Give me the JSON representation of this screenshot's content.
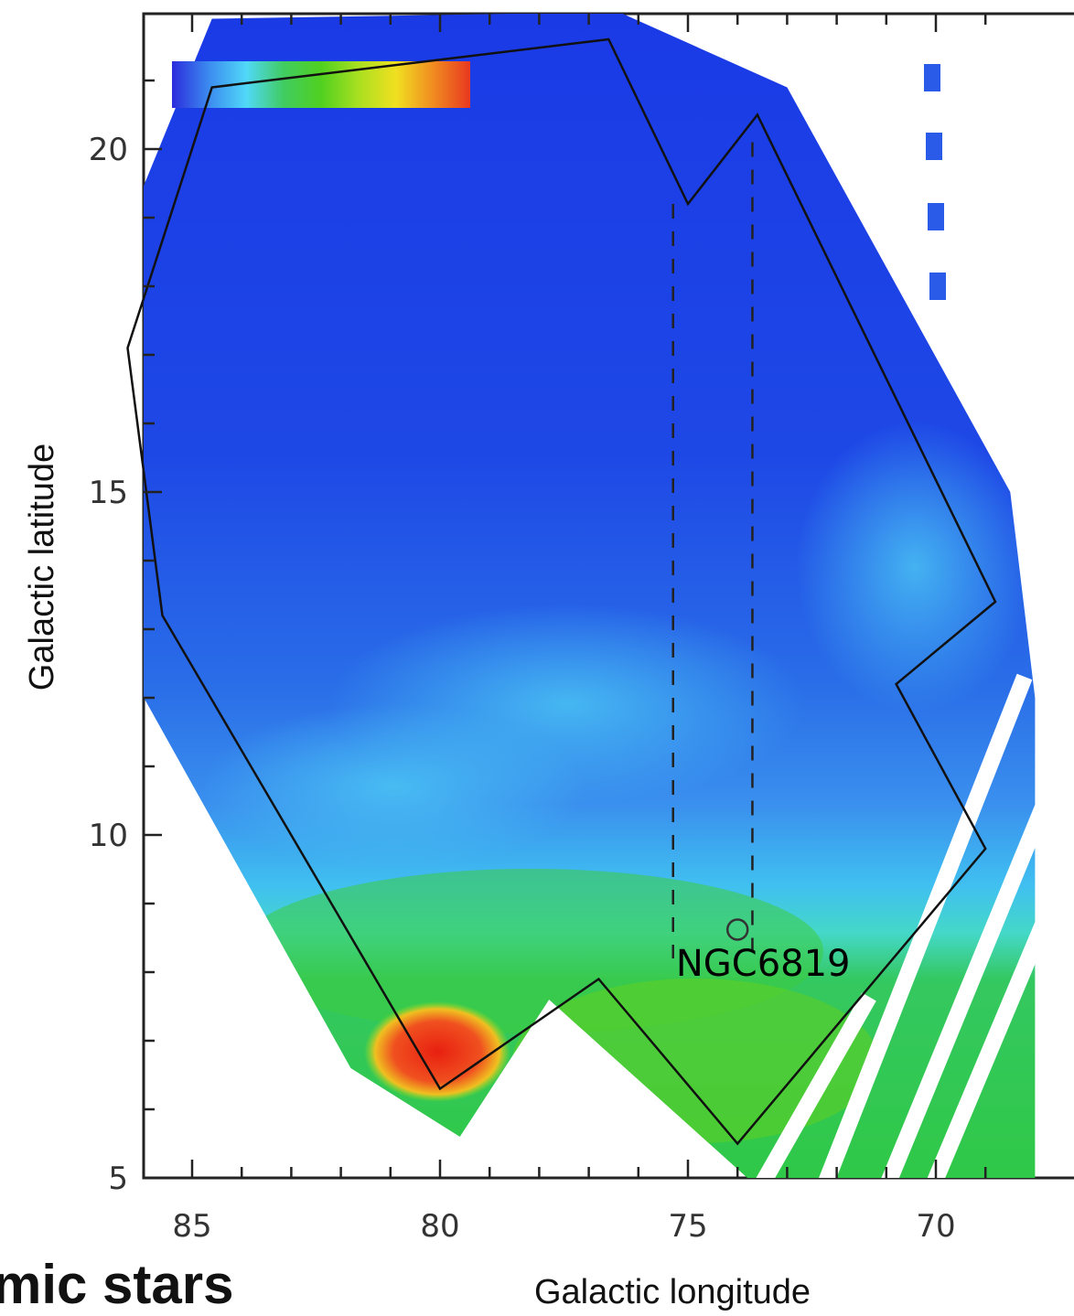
{
  "chart_data": {
    "type": "heatmap",
    "title": "",
    "xlabel": "Galactic longitude",
    "ylabel": "Galactic latitude",
    "xlim": [
      86,
      68.6
    ],
    "ylim": [
      5,
      21.5
    ],
    "x_ticks": [
      85,
      80,
      75,
      70
    ],
    "y_ticks": [
      5,
      10,
      15,
      20
    ],
    "colorbar": {
      "colors": [
        "#2c2cdc",
        "#3c8cf0",
        "#50d8f8",
        "#40cc60",
        "#50d020",
        "#a8e020",
        "#f0e020",
        "#f08c20",
        "#e83820"
      ]
    },
    "field_outline": [
      [
        85.6,
        13.2
      ],
      [
        86.3,
        17.1
      ],
      [
        84.6,
        20.9
      ],
      [
        76.6,
        21.6
      ],
      [
        75.0,
        19.2
      ],
      [
        73.6,
        20.5
      ],
      [
        68.8,
        13.4
      ],
      [
        70.8,
        12.2
      ],
      [
        69.0,
        9.8
      ],
      [
        74.0,
        5.5
      ],
      [
        76.8,
        7.9
      ],
      [
        80.0,
        6.3
      ]
    ],
    "dashed_lines": [
      [
        75.3,
        19.2,
        75.3,
        8.2
      ],
      [
        73.7,
        20.1,
        73.7,
        8.2
      ]
    ],
    "annotations": [
      {
        "text": "NGC6819",
        "x": 74.0,
        "y": 8.4
      }
    ]
  },
  "cut_title": "mic stars"
}
